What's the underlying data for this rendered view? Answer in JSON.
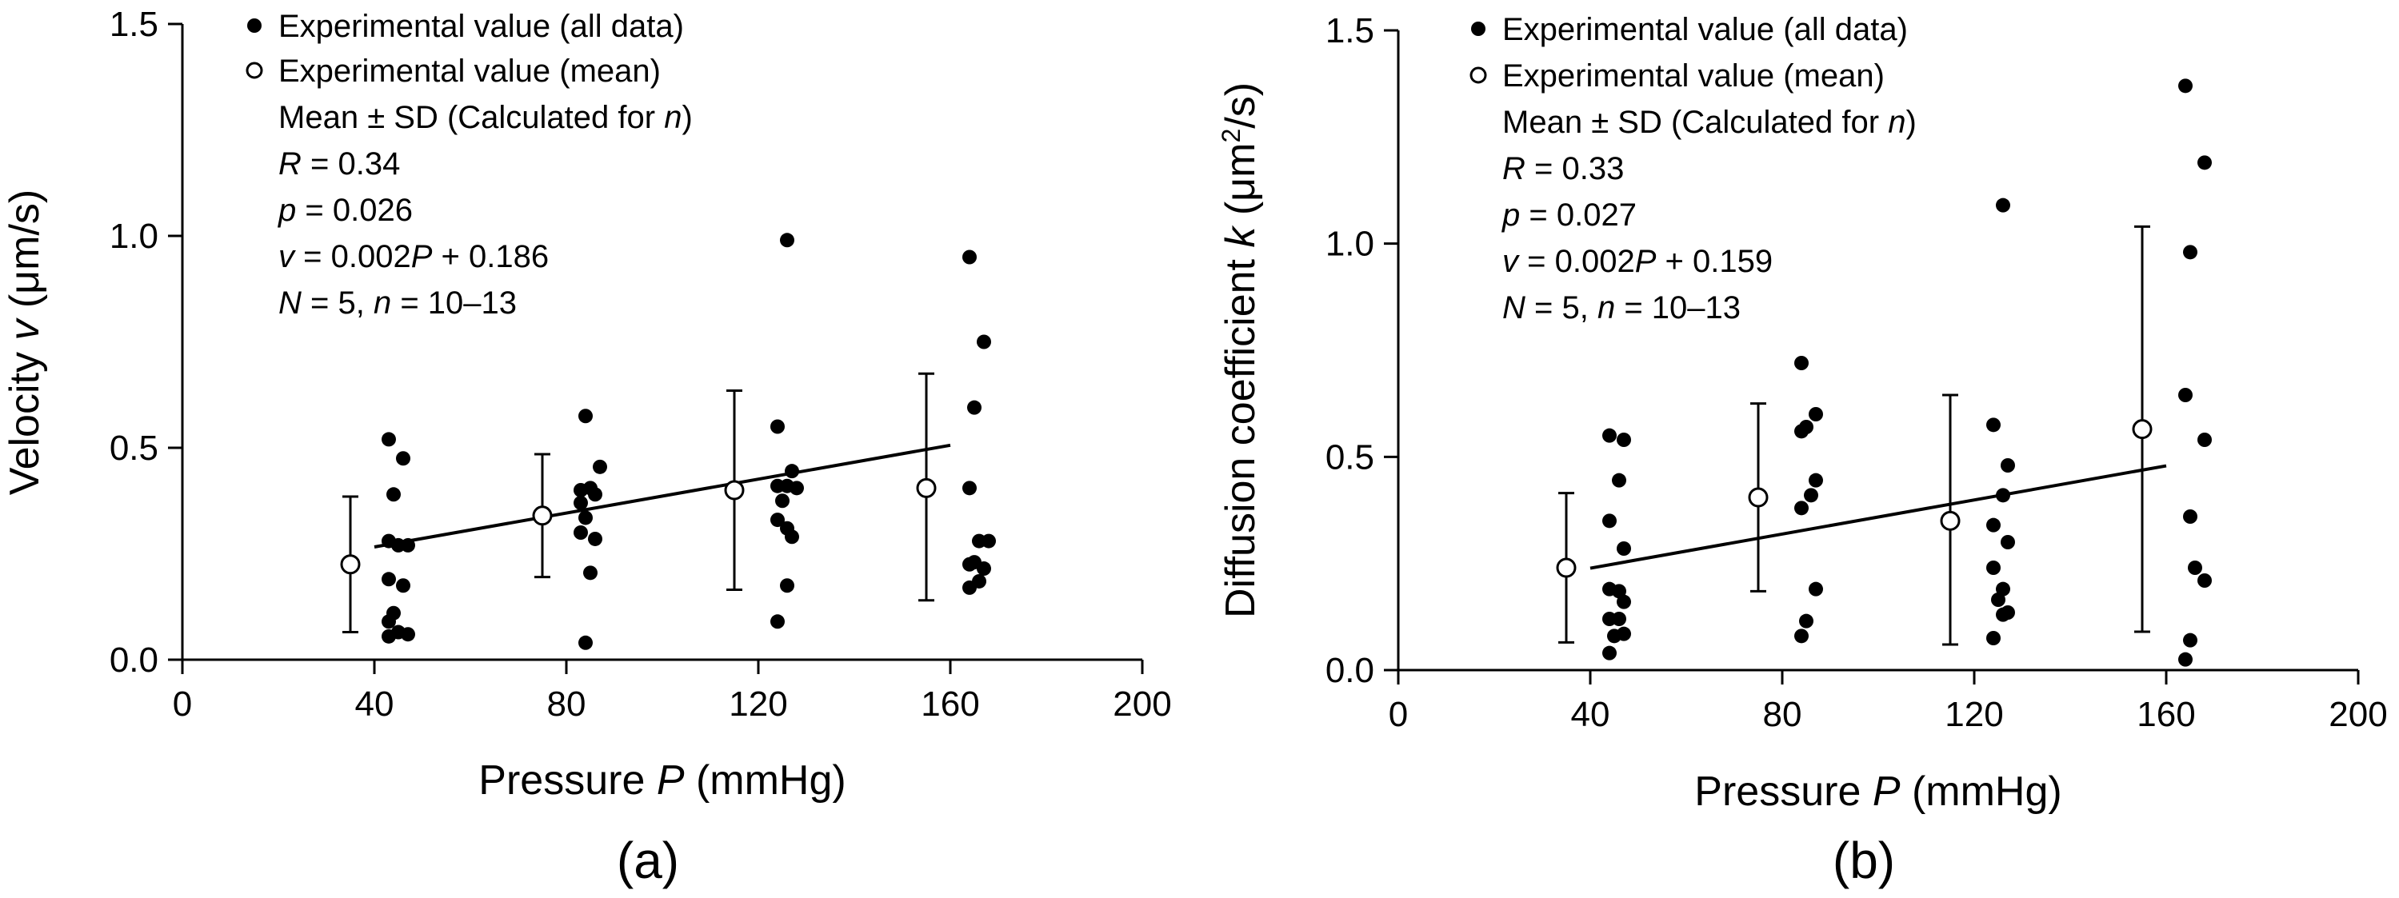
{
  "chart_data": [
    {
      "type": "scatter",
      "panel_label": "(a)",
      "xlabel": {
        "main": "Pressure ",
        "var": "P",
        "unit": " (mmHg)"
      },
      "ylabel": {
        "main": "Velocity ",
        "var": "v",
        "unit_pre": " (μm/s)",
        "sup": "",
        "unit_post": ""
      },
      "xlim": [
        0,
        200
      ],
      "ylim": [
        0,
        1.5
      ],
      "xticks": [
        0,
        40,
        80,
        120,
        160,
        200
      ],
      "yticks": [
        0.0,
        0.5,
        1.0,
        1.5
      ],
      "xtick_labels": [
        "0",
        "40",
        "80",
        "120",
        "160",
        "200"
      ],
      "ytick_labels": [
        "0.0",
        "0.5",
        "1.0",
        "1.5"
      ],
      "legend": {
        "all_data": "Experimental value (all data)",
        "mean": "Experimental value (mean)",
        "sd_a": "Mean",
        "sd_pm": "±",
        "sd_b": "SD (Calculated for",
        "sd_n": "n",
        "sd_c": ")",
        "r_var": "R",
        "r_val": " = 0.34",
        "p_var": "p",
        "p_val": " = 0.026",
        "eq_v": "v",
        "eq_mid": " = 0.002",
        "eq_P": "P",
        "eq_end": " + 0.186",
        "N_var": "N",
        "N_mid": " = 5, ",
        "n_var": "n",
        "n_end": " = 10–13"
      },
      "all_points": [
        [
          43,
          0.52
        ],
        [
          46,
          0.475
        ],
        [
          44,
          0.39
        ],
        [
          43,
          0.28
        ],
        [
          45,
          0.27
        ],
        [
          47,
          0.27
        ],
        [
          43,
          0.19
        ],
        [
          46,
          0.175
        ],
        [
          44,
          0.11
        ],
        [
          43,
          0.09
        ],
        [
          45,
          0.065
        ],
        [
          43,
          0.055
        ],
        [
          47,
          0.06
        ],
        [
          84,
          0.575
        ],
        [
          87,
          0.455
        ],
        [
          83,
          0.4
        ],
        [
          85,
          0.405
        ],
        [
          86,
          0.39
        ],
        [
          83,
          0.37
        ],
        [
          84,
          0.335
        ],
        [
          86,
          0.285
        ],
        [
          83,
          0.3
        ],
        [
          85,
          0.205
        ],
        [
          84,
          0.04
        ],
        [
          126,
          0.99
        ],
        [
          124,
          0.55
        ],
        [
          127,
          0.445
        ],
        [
          124,
          0.41
        ],
        [
          126,
          0.41
        ],
        [
          128,
          0.405
        ],
        [
          125,
          0.375
        ],
        [
          126,
          0.31
        ],
        [
          124,
          0.33
        ],
        [
          127,
          0.29
        ],
        [
          126,
          0.175
        ],
        [
          124,
          0.09
        ],
        [
          164,
          0.95
        ],
        [
          167,
          0.75
        ],
        [
          165,
          0.595
        ],
        [
          164,
          0.405
        ],
        [
          166,
          0.28
        ],
        [
          168,
          0.28
        ],
        [
          165,
          0.23
        ],
        [
          167,
          0.215
        ],
        [
          164,
          0.225
        ],
        [
          166,
          0.185
        ],
        [
          164,
          0.17
        ]
      ],
      "means": [
        {
          "x": 35,
          "y": 0.225,
          "sd_low": 0.065,
          "sd_high": 0.385
        },
        {
          "x": 75,
          "y": 0.34,
          "sd_low": 0.195,
          "sd_high": 0.485
        },
        {
          "x": 115,
          "y": 0.4,
          "sd_low": 0.165,
          "sd_high": 0.635
        },
        {
          "x": 155,
          "y": 0.405,
          "sd_low": 0.14,
          "sd_high": 0.675
        }
      ],
      "fit": {
        "slope": 0.002,
        "intercept": 0.186,
        "x_range": [
          40,
          160
        ],
        "R": 0.34,
        "p": 0.026
      }
    },
    {
      "type": "scatter",
      "panel_label": "(b)",
      "xlabel": {
        "main": "Pressure ",
        "var": "P",
        "unit": " (mmHg)"
      },
      "ylabel": {
        "main": "Diffusion coefficient ",
        "var": "k",
        "unit_pre": " (μm",
        "sup": "2",
        "unit_post": "/s)"
      },
      "xlim": [
        0,
        200
      ],
      "ylim": [
        0,
        1.5
      ],
      "xticks": [
        0,
        40,
        80,
        120,
        160,
        200
      ],
      "yticks": [
        0.0,
        0.5,
        1.0,
        1.5
      ],
      "xtick_labels": [
        "0",
        "40",
        "80",
        "120",
        "160",
        "200"
      ],
      "ytick_labels": [
        "0.0",
        "0.5",
        "1.0",
        "1.5"
      ],
      "legend": {
        "all_data": "Experimental value (all data)",
        "mean": "Experimental value (mean)",
        "sd_a": "Mean",
        "sd_pm": "±",
        "sd_b": "SD (Calculated for",
        "sd_n": "n",
        "sd_c": ")",
        "r_var": "R",
        "r_val": " = 0.33",
        "p_var": "p",
        "p_val": " = 0.027",
        "eq_v": "v",
        "eq_mid": " = 0.002",
        "eq_P": "P",
        "eq_end": " + 0.159",
        "N_var": "N",
        "N_mid": " = 5, ",
        "n_var": "n",
        "n_end": " = 10–13"
      },
      "all_points": [
        [
          44,
          0.55
        ],
        [
          47,
          0.54
        ],
        [
          46,
          0.445
        ],
        [
          44,
          0.35
        ],
        [
          47,
          0.285
        ],
        [
          44,
          0.19
        ],
        [
          46,
          0.185
        ],
        [
          47,
          0.16
        ],
        [
          44,
          0.12
        ],
        [
          46,
          0.12
        ],
        [
          47,
          0.085
        ],
        [
          45,
          0.08
        ],
        [
          44,
          0.04
        ],
        [
          84,
          0.72
        ],
        [
          87,
          0.6
        ],
        [
          85,
          0.57
        ],
        [
          84,
          0.56
        ],
        [
          87,
          0.445
        ],
        [
          86,
          0.41
        ],
        [
          84,
          0.38
        ],
        [
          87,
          0.19
        ],
        [
          85,
          0.115
        ],
        [
          84,
          0.08
        ],
        [
          126,
          1.09
        ],
        [
          124,
          0.575
        ],
        [
          127,
          0.48
        ],
        [
          126,
          0.41
        ],
        [
          124,
          0.34
        ],
        [
          127,
          0.3
        ],
        [
          124,
          0.24
        ],
        [
          126,
          0.19
        ],
        [
          125,
          0.165
        ],
        [
          127,
          0.135
        ],
        [
          126,
          0.13
        ],
        [
          124,
          0.075
        ],
        [
          164,
          1.37
        ],
        [
          168,
          1.19
        ],
        [
          165,
          0.98
        ],
        [
          168,
          0.54
        ],
        [
          164,
          0.645
        ],
        [
          165,
          0.36
        ],
        [
          166,
          0.24
        ],
        [
          168,
          0.21
        ],
        [
          165,
          0.07
        ],
        [
          164,
          0.025
        ]
      ],
      "means": [
        {
          "x": 35,
          "y": 0.24,
          "sd_low": 0.065,
          "sd_high": 0.415
        },
        {
          "x": 75,
          "y": 0.405,
          "sd_low": 0.185,
          "sd_high": 0.625
        },
        {
          "x": 115,
          "y": 0.35,
          "sd_low": 0.06,
          "sd_high": 0.645
        },
        {
          "x": 155,
          "y": 0.565,
          "sd_low": 0.09,
          "sd_high": 1.04
        }
      ],
      "fit": {
        "slope": 0.002,
        "intercept": 0.159,
        "x_range": [
          40,
          160
        ],
        "R": 0.33,
        "p": 0.027
      }
    }
  ]
}
